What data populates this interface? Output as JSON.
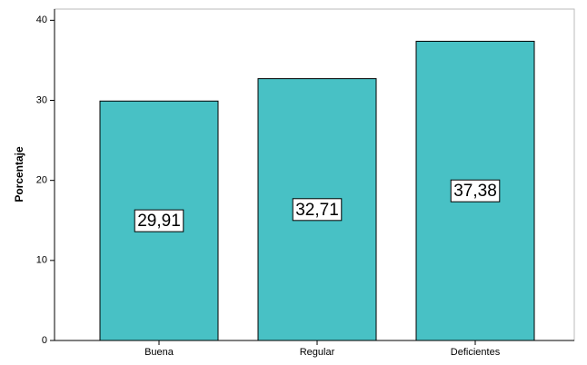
{
  "chart_data": {
    "type": "bar",
    "y_label": "Porcentaje",
    "categories": [
      "Buena",
      "Regular",
      "Deficientes"
    ],
    "values": [
      29.91,
      32.71,
      37.38
    ],
    "value_labels": [
      "29,91",
      "32,71",
      "37,38"
    ],
    "color": "#48c1c5",
    "ylim": [
      0,
      41.4
    ],
    "yticks": [
      0,
      10,
      20,
      30,
      40
    ],
    "grid": false
  }
}
